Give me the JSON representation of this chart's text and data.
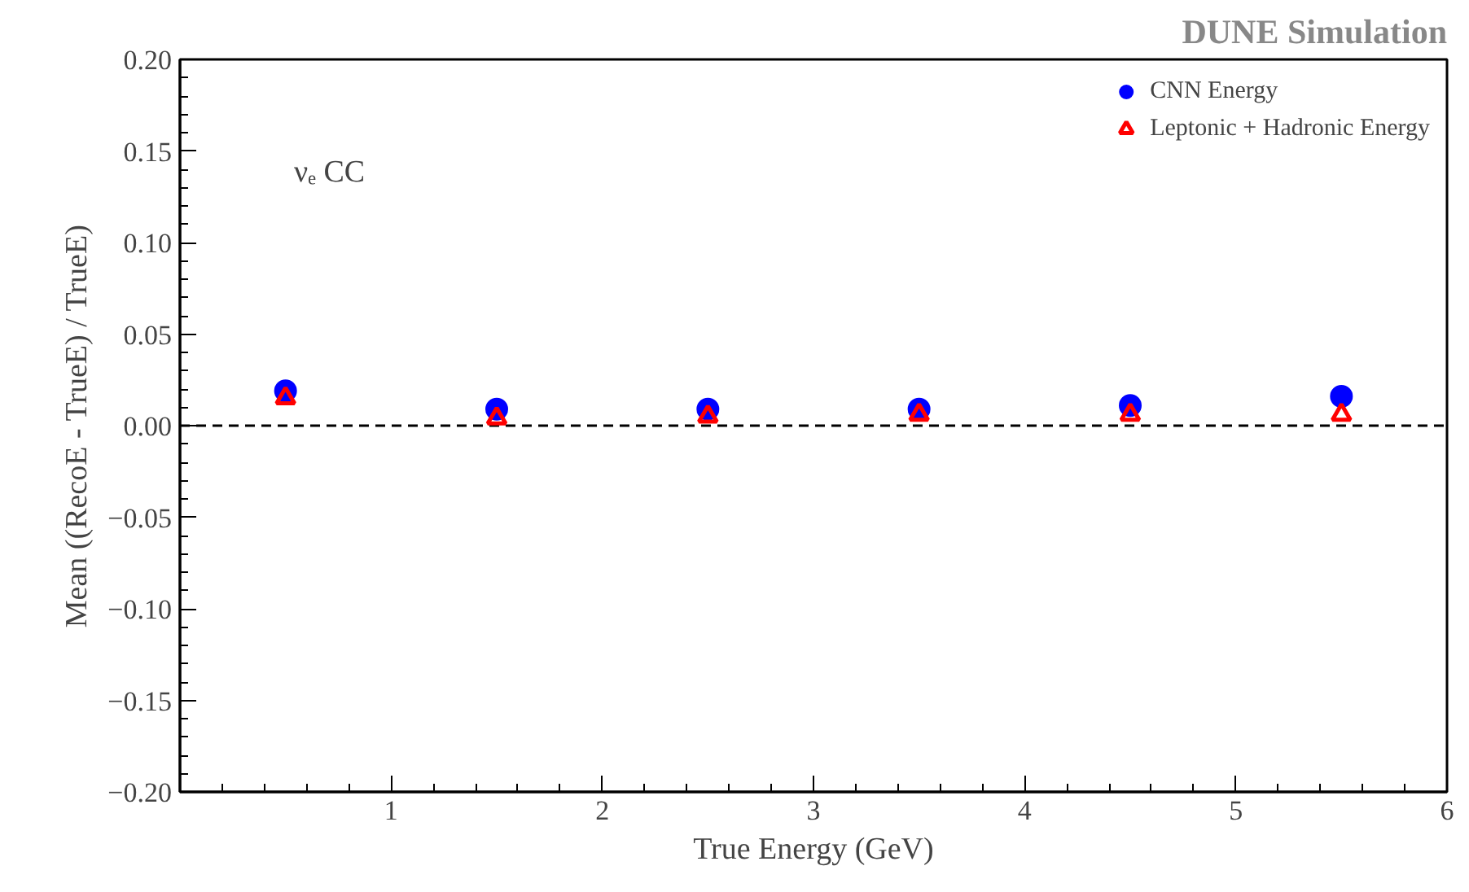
{
  "chart_data": {
    "type": "scatter",
    "xlabel": "True Energy (GeV)",
    "ylabel": "Mean ((RecoE - TrueE) / TrueE)",
    "x": [
      0.5,
      1.5,
      2.5,
      3.5,
      4.5,
      5.5
    ],
    "series": [
      {
        "name": "CNN Energy",
        "color": "#0000ff",
        "marker": "circle",
        "values": [
          0.019,
          0.009,
          0.009,
          0.009,
          0.011,
          0.016
        ]
      },
      {
        "name": "Leptonic + Hadronic Energy",
        "color": "#ff0000",
        "marker": "triangle",
        "values": [
          0.015,
          0.004,
          0.005,
          0.006,
          0.006,
          0.006
        ]
      }
    ],
    "xlim": [
      0,
      6
    ],
    "xticks": [
      {
        "value": 0,
        "label": null
      },
      1,
      2,
      3,
      4,
      5,
      6
    ],
    "ylim": [
      -0.2,
      0.2
    ],
    "yticks": [
      {
        "value": -0.2,
        "label": "−0.20"
      },
      {
        "value": -0.15,
        "label": "−0.15"
      },
      {
        "value": -0.1,
        "label": "−0.10"
      },
      {
        "value": -0.05,
        "label": "−0.05"
      },
      {
        "value": 0,
        "label": "0.00"
      },
      {
        "value": 0.05,
        "label": "0.05"
      },
      {
        "value": 0.1,
        "label": "0.10"
      },
      {
        "value": 0.15,
        "label": "0.15"
      },
      {
        "value": 0.2,
        "label": "0.20"
      }
    ],
    "ref_lines": [
      {
        "axis": "y",
        "value": 0,
        "color": "#000000",
        "line_style": "dashed"
      }
    ],
    "annotations": [
      "DUNE Simulation",
      "νₑ CC"
    ],
    "legend": "top right",
    "grid": false
  }
}
